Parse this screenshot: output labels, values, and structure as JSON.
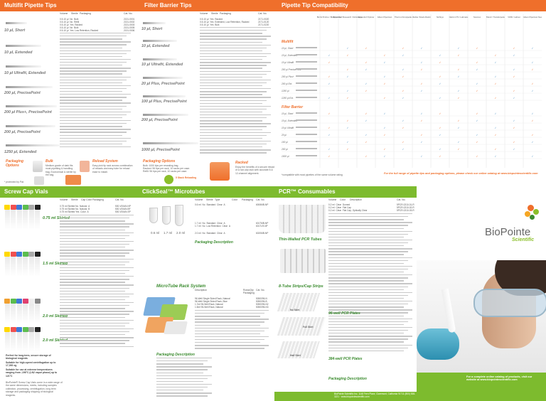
{
  "panels": {
    "multifit": {
      "title": "Multifit Pipette Tips",
      "col_headers": [
        "Volume",
        "Sterile",
        "Packaging",
        "Cat. No."
      ],
      "groups": [
        "10 µl, Short",
        "10 µl, Extended",
        "10 µl Ultrafit, Extended",
        "200 µl, PrecisePoint",
        "200 µl Plus+, PrecisePoint",
        "200 µl, PrecisePoint",
        "1250 µl, Extended"
      ],
      "rows": [
        {
          "vol": "0.5-10 µl",
          "sterile": "No",
          "pack": "Bulk",
          "cat": "2131-0001"
        },
        {
          "vol": "0.5-10 µl",
          "sterile": "No",
          "pack": "Refill",
          "cat": "2131-0002"
        },
        {
          "vol": "0.5-10 µl",
          "sterile": "Yes",
          "pack": "Racked",
          "cat": "2131-0003"
        },
        {
          "vol": "0.5-10 µl",
          "sterile": "No",
          "pack": "Bulk",
          "cat": "2131-0005"
        },
        {
          "vol": "0.5-10 µl",
          "sterile": "Yes",
          "pack": "Low Retention, Racked",
          "cat": "2131-0006"
        }
      ],
      "packaging_title": "Packaging Options",
      "bulk_title": "Bulk",
      "bulk_text": "Medium-grade of dark fits most pipetting & handling bag. Economical & sterile by the bag.",
      "reload_title": "Reload System",
      "reload_text": "Easy pick tip rack across combination of reloads and easy tube for reload ease to install.",
      "footnote": "* protected by Pat."
    },
    "filter": {
      "title": "Filter Barrier Tips",
      "col_headers": [
        "Volume",
        "Sterile",
        "Packaging",
        "Cat. No."
      ],
      "groups": [
        "10 µl, Short",
        "10 µl, Extended",
        "10 µl Ultrafit, Extended",
        "20 µl Plus, PrecisePoint",
        "100 µl Plus, PrecisePoint",
        "200 µl, PrecisePoint",
        "1000 µl, PrecisePoint"
      ],
      "rows": [
        {
          "vol": "0.5-10 µl",
          "sterile": "Yes",
          "pack": "Racked",
          "cat": "2171-0020"
        },
        {
          "vol": "0.5-10 µl",
          "sterile": "Yes",
          "pack": "Extended, Low Retention, Racked",
          "cat": "2171-0120"
        },
        {
          "vol": "0.5-10 µl",
          "sterile": "Yes",
          "pack": "Bulk",
          "cat": "2171-0220"
        }
      ],
      "packaging_title": "Packaging Options",
      "opt1": "Bulk: 1000 tips per resealing bag.",
      "opt2": "Racked: 96 tips per rack, 10 racks per case.",
      "opt3": "Refill: 96 tips per rack, 10 racks per case.",
      "reload_title": "5-Stack",
      "racked_title": "Racked",
      "racked_text": "Enjoy the benefits of a secure reload of a non-slip rack with accurate 8 & 12-channel alignment.",
      "badge": "5 Stack Reloading"
    },
    "compat": {
      "title": "Pipette Tip Compatibility",
      "brands": [
        "Biohit Proline / Biohit mLine",
        "Eppendorf Research / Reference",
        "Eppendorf Xplorer",
        "Gilson Pipetman",
        "Thermo Finnpipette",
        "Mettler-Toledo Rainin",
        "Nichiryo",
        "Rainin LTS / Labmate",
        "Socorex",
        "Brand / Transferpette",
        "VWR / Labnet",
        "Gilson Pipetman Neo"
      ],
      "rows": [
        "10 µl, Short",
        "10 µl, Extended",
        "10 µl Ultrafit",
        "200 µl PrecisePoint",
        "200 µl Plus+",
        "200 µl Ext.",
        "1250 µl",
        "1250 µl Ext."
      ],
      "multifit_label": "Multifit",
      "filter_label": "Filter Barrier",
      "filter_rows": [
        "10 µl, Short",
        "10 µl, Extended",
        "10 µl Ultrafit",
        "20 µl",
        "100 µl",
        "200 µl",
        "1000 µl"
      ],
      "footer": "For the full range of pipette tips and packaging options, please check our online catalog at www.biopointescientific.com",
      "note": "*compatible with most pipettes of the same volume rating"
    },
    "screw": {
      "title": "Screw Cap Vials",
      "col_headers": [
        "Volume",
        "Sterile",
        "Cap Color",
        "Packaging",
        "Cat. No."
      ],
      "groups": [
        "0.75 ml Skirted",
        "1.5 ml Skirted",
        "2.0 ml Skirted",
        "2.0 ml Skirted"
      ],
      "rows": [
        {
          "vol": "0.75 ml",
          "skirt": "Skirted",
          "sterile": "No",
          "color": "Natural",
          "pack": "A",
          "cat": "500-V00AN-NP"
        },
        {
          "vol": "0.75 ml",
          "skirt": "Skirted",
          "sterile": "No",
          "color": "Natural",
          "pack": "B",
          "cat": "500-V00AN-BF"
        },
        {
          "vol": "0.75 ml",
          "skirt": "Skirted",
          "sterile": "Yes",
          "color": "Color",
          "pack": "A",
          "cat": "500-V00AN-SP"
        }
      ],
      "bullets": [
        "Perfect for long-term, secure storage of biological reagents",
        "Suitable for high-speed centrifugation up to 17,000 xg",
        "Suitable for use at extreme temperatures ranging from -196°C (LN2 vapor phase) up to 121°C"
      ],
      "note": "BioPointe® Screw Cap Vials come in a wide range of the same dimensions, meets, including samples collection, processing, centrifugation, long term storage and packaging shipping of biological reagents."
    },
    "clickseal": {
      "title": "ClickSeal™ Microtubes",
      "col_headers": [
        "Volume",
        "Sterile",
        "Type",
        "Color",
        "Packaging",
        "Cat. No."
      ],
      "rows": [
        {
          "vol": "0.6 ml",
          "sterile": "No",
          "type": "Standard",
          "color": "Clear",
          "pack": "A",
          "cat": "6006MB-NP"
        },
        {
          "vol": "1.7 ml",
          "sterile": "No",
          "type": "Standard",
          "color": "Clear",
          "pack": "A",
          "cat": "6017MB-NP"
        },
        {
          "vol": "1.7 ml",
          "sterile": "No",
          "type": "Low Retention",
          "color": "Clear",
          "pack": "A",
          "cat": "6017LR-NP"
        },
        {
          "vol": "2.0 ml",
          "sterile": "No",
          "type": "Standard",
          "color": "Clear",
          "pack": "A",
          "cat": "6020MB-NP"
        }
      ],
      "tube_labels": [
        "0.6 ml",
        "1.7 ml",
        "2.0 ml"
      ],
      "pack_title": "Packaging Description",
      "rack_title": "MicroTube Rack System",
      "rack_headers": [
        "Description",
        "Rows/Qty",
        "Packaging",
        "Cat. No."
      ],
      "rack_rows": [
        {
          "desc": "96-Well Single Sided Rack, Natural",
          "qty": "96",
          "pack": "1/Bx",
          "cat": "5050096-N"
        },
        {
          "desc": "96-Well Single Sided Rack, Blue",
          "qty": "96",
          "pack": "1/Bx",
          "cat": "5050096-B"
        },
        {
          "desc": "1.7ml 96-Well Rack, Natural",
          "qty": "96",
          "pack": "1/Bx",
          "cat": "5050096-N2"
        },
        {
          "desc": "1.5ml 96-Well Rack, Natural",
          "qty": "96",
          "pack": "1/Bx",
          "cat": "5050096-N3"
        }
      ]
    },
    "pcr": {
      "title": "PCR™ Consumables",
      "col_headers": [
        "Volume",
        "Color",
        "Description",
        "Cat. No."
      ],
      "rows": [
        {
          "vol": "0.2 ml",
          "color": "Clear",
          "desc": "Domed",
          "cat": "5PCR-0210-01-R"
        },
        {
          "vol": "0.2 ml",
          "color": "Clear",
          "desc": "Flat Cap",
          "cat": "5PCR-0210-02-R"
        },
        {
          "vol": "0.2 ml",
          "color": "Clear",
          "desc": "Flat Cap, Optically Clear",
          "cat": "5PCR-0210-03-R"
        }
      ],
      "labels": [
        "Thin-Walled PCR Tubes",
        "8-Tube Strips/Cap Strips",
        "96-well PCR Plates",
        "384-well PCR Plates"
      ],
      "plate_labels": [
        "No Skirt",
        "Full Skirt",
        "Half Skirt"
      ],
      "packaging_title": "Packaging Description"
    },
    "brand": {
      "logo_line1": "BioPointe",
      "logo_line2": "Scientific",
      "tagline": "For a complete online catalog of products, visit our website at www.biopointescientific.com",
      "address": "BioPointe Scientific Inc. 1148 Fern Place, Claremont, California 91711 (800) 538-3221 · www.biopointescientific.com"
    }
  },
  "colors": {
    "orange": "#ef6f2b",
    "green": "#7dbb2e",
    "dark_green": "#3a8b2e"
  }
}
